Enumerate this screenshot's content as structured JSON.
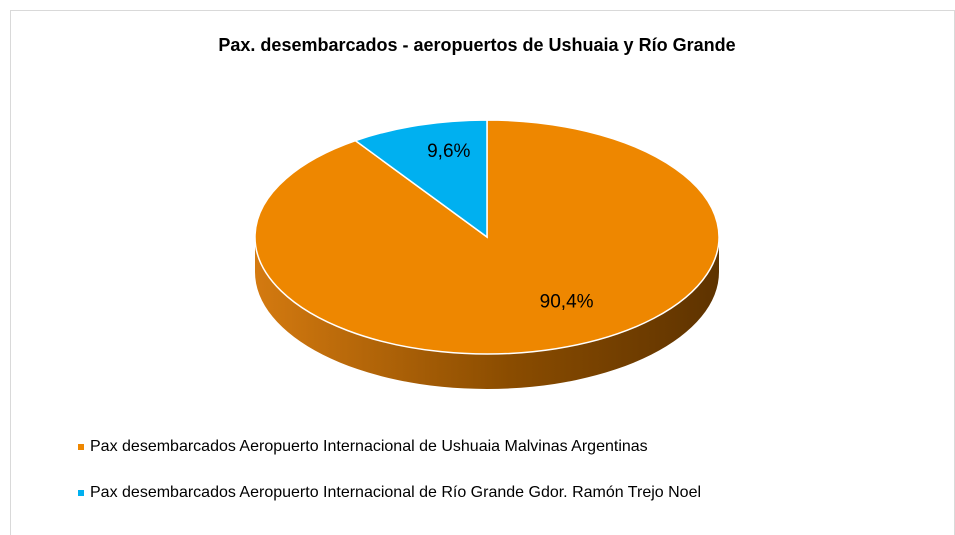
{
  "chart_data": {
    "type": "pie",
    "title": "Pax. desembarcados - aeropuertos de Ushuaia y Río Grande",
    "categories": [
      "Pax desembarcados Aeropuerto Internacional de Ushuaia Malvinas Argentinas",
      "Pax desembarcados Aeropuerto Internacional de Río Grande Gdor. Ramón Trejo Noel"
    ],
    "values": [
      90.4,
      9.6
    ],
    "value_labels": [
      "90,4%",
      "9,6%"
    ],
    "colors": [
      "#ee8700",
      "#00b0f0"
    ],
    "legend": "bottom-left"
  }
}
